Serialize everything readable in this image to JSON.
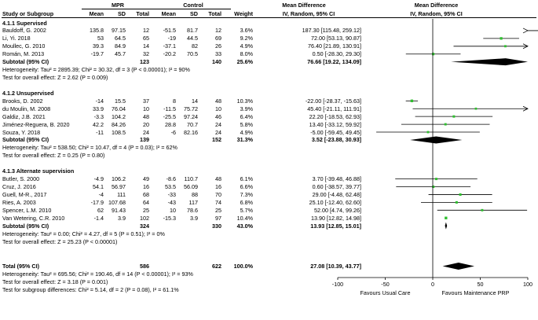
{
  "header": {
    "group1": "MPR",
    "group2": "Control",
    "diff_label": "Mean Difference",
    "diff_label2": "Mean Difference",
    "columns": [
      "Study or Subgroup",
      "Mean",
      "SD",
      "Total",
      "Mean",
      "SD",
      "Total",
      "Weight",
      "IV, Random, 95% CI",
      "IV, Random, 95% CI"
    ]
  },
  "subgroups": [
    {
      "title": "4.1.1 Supervised",
      "studies": [
        {
          "study": "Bauldoff, G. 2002",
          "m1": "135.8",
          "sd1": "97.15",
          "n1": "12",
          "m2": "-51.5",
          "sd2": "81.7",
          "n2": "12",
          "weight": "3.6%",
          "ci": "187.30 [115.48, 259.12]",
          "md": 187.3,
          "lo": 115.48,
          "hi": 259.12
        },
        {
          "study": "Li, Yi. 2018",
          "m1": "53",
          "sd1": "64.5",
          "n1": "65",
          "m2": "-19",
          "sd2": "44.5",
          "n2": "69",
          "weight": "9.2%",
          "ci": "72.00 [53.13, 90.87]",
          "md": 72.0,
          "lo": 53.13,
          "hi": 90.87
        },
        {
          "study": "Moullec, G. 2010",
          "m1": "39.3",
          "sd1": "84.9",
          "n1": "14",
          "m2": "-37.1",
          "sd2": "82",
          "n2": "26",
          "weight": "4.9%",
          "ci": "76.40 [21.89, 130.91]",
          "md": 76.4,
          "lo": 21.89,
          "hi": 130.91
        },
        {
          "study": "Román, M. 2013",
          "m1": "-19.7",
          "sd1": "45.7",
          "n1": "32",
          "m2": "-20.2",
          "sd2": "70.5",
          "n2": "33",
          "weight": "8.0%",
          "ci": "0.50 [-28.30, 29.30]",
          "md": 0.5,
          "lo": -28.3,
          "hi": 29.3
        }
      ],
      "subtotal": {
        "label": "Subtotal (95% CI)",
        "n1": "123",
        "n2": "140",
        "weight": "25.6%",
        "ci": "76.66 [19.22, 134.09]",
        "md": 76.66,
        "lo": 19.22,
        "hi": 134.09
      },
      "heterogeneity": "Heterogeneity: Tau² = 2895.39; Chi² = 30.32, df = 3 (P < 0.00001); I² = 90%",
      "overall": "Test for overall effect: Z = 2.62 (P = 0.009)"
    },
    {
      "title": "4.1.2 Unsupervised",
      "studies": [
        {
          "study": "Brooks, D. 2002",
          "m1": "-14",
          "sd1": "15.5",
          "n1": "37",
          "m2": "8",
          "sd2": "14",
          "n2": "48",
          "weight": "10.3%",
          "ci": "-22.00 [-28.37, -15.63]",
          "md": -22.0,
          "lo": -28.37,
          "hi": -15.63
        },
        {
          "study": "du Moulin, M. 2008",
          "m1": "33.9",
          "sd1": "76.04",
          "n1": "10",
          "m2": "-11.5",
          "sd2": "75.72",
          "n2": "10",
          "weight": "3.9%",
          "ci": "45.40 [-21.11, 111.91]",
          "md": 45.4,
          "lo": -21.11,
          "hi": 111.91
        },
        {
          "study": "Galdiz, J.B. 2021",
          "m1": "-3.3",
          "sd1": "104.2",
          "n1": "48",
          "m2": "-25.5",
          "sd2": "97.24",
          "n2": "46",
          "weight": "6.4%",
          "ci": "22.20 [-18.53, 62.93]",
          "md": 22.2,
          "lo": -18.53,
          "hi": 62.93
        },
        {
          "study": "Jiménez-Reguera, B. 2020",
          "m1": "42.2",
          "sd1": "84.26",
          "n1": "20",
          "m2": "28.8",
          "sd2": "70.7",
          "n2": "24",
          "weight": "5.8%",
          "ci": "13.40 [-33.12, 59.92]",
          "md": 13.4,
          "lo": -33.12,
          "hi": 59.92
        },
        {
          "study": "Souza, Y. 2018",
          "m1": "-11",
          "sd1": "108.5",
          "n1": "24",
          "m2": "-6",
          "sd2": "82.16",
          "n2": "24",
          "weight": "4.9%",
          "ci": "-5.00 [-59.45, 49.45]",
          "md": -5.0,
          "lo": -59.45,
          "hi": 49.45
        }
      ],
      "subtotal": {
        "label": "Subtotal (95% CI)",
        "n1": "139",
        "n2": "152",
        "weight": "31.3%",
        "ci": "3.52 [-23.88, 30.93]",
        "md": 3.52,
        "lo": -23.88,
        "hi": 30.93
      },
      "heterogeneity": "Heterogeneity: Tau² = 538.50; Chi² = 10.47, df = 4 (P = 0.03); I² = 62%",
      "overall": "Test for overall effect: Z = 0.25 (P = 0.80)"
    },
    {
      "title": "4.1.3 Alternate supervision",
      "studies": [
        {
          "study": "Butler, S. 2000",
          "m1": "-4.9",
          "sd1": "106.2",
          "n1": "49",
          "m2": "-8.6",
          "sd2": "110.7",
          "n2": "48",
          "weight": "6.1%",
          "ci": "3.70 [-39.48, 46.88]",
          "md": 3.7,
          "lo": -39.48,
          "hi": 46.88
        },
        {
          "study": "Cruz, J. 2016",
          "m1": "54.1",
          "sd1": "56.97",
          "n1": "16",
          "m2": "53.5",
          "sd2": "56.09",
          "n2": "16",
          "weight": "6.6%",
          "ci": "0.60 [-38.57, 39.77]",
          "md": 0.6,
          "lo": -38.57,
          "hi": 39.77
        },
        {
          "study": "Guell, M-R., 2017",
          "m1": "-4",
          "sd1": "111",
          "n1": "68",
          "m2": "-33",
          "sd2": "88",
          "n2": "70",
          "weight": "7.3%",
          "ci": "29.00 [-4.48, 62.48]",
          "md": 29.0,
          "lo": -4.48,
          "hi": 62.48
        },
        {
          "study": "Ries, A. 2003",
          "m1": "-17.9",
          "sd1": "107.68",
          "n1": "64",
          "m2": "-43",
          "sd2": "117",
          "n2": "74",
          "weight": "6.8%",
          "ci": "25.10 [-12.40, 62.60]",
          "md": 25.1,
          "lo": -12.4,
          "hi": 62.6
        },
        {
          "study": "Spencer, L.M. 2010",
          "m1": "62",
          "sd1": "91.43",
          "n1": "25",
          "m2": "10",
          "sd2": "78.6",
          "n2": "25",
          "weight": "5.7%",
          "ci": "52.00 [4.74, 99.26]",
          "md": 52.0,
          "lo": 4.74,
          "hi": 99.26
        },
        {
          "study": "Van Wetering, C.R. 2010",
          "m1": "-1.4",
          "sd1": "3.9",
          "n1": "102",
          "m2": "-15.3",
          "sd2": "3.9",
          "n2": "97",
          "weight": "10.4%",
          "ci": "13.90 [12.82, 14.98]",
          "md": 13.9,
          "lo": 12.82,
          "hi": 14.98
        }
      ],
      "subtotal": {
        "label": "Subtotal (95% CI)",
        "n1": "324",
        "n2": "330",
        "weight": "43.0%",
        "ci": "13.93 [12.85, 15.01]",
        "md": 13.93,
        "lo": 12.85,
        "hi": 15.01
      },
      "heterogeneity": "Heterogeneity: Tau² = 0.00; Chi² = 4.27, df = 5 (P = 0.51); I² = 0%",
      "overall": "Test for overall effect: Z = 25.23 (P < 0.00001)"
    }
  ],
  "total": {
    "label": "Total (95% CI)",
    "n1": "586",
    "n2": "622",
    "weight": "100.0%",
    "ci": "27.08 [10.39, 43.77]",
    "md": 27.08,
    "lo": 10.39,
    "hi": 43.77
  },
  "footer": {
    "heterogeneity": "Heterogeneity: Tau² = 695.56; Chi² = 190.46, df = 14 (P < 0.00001); I² = 93%",
    "overall": "Test for overall effect: Z = 3.18 (P = 0.001)",
    "subgroup": "Test for subgroup differences: Chi² = 5.14, df = 2 (P = 0.08), I² = 61.1%"
  },
  "chart_data": {
    "type": "forest",
    "xlim": [
      -100,
      100
    ],
    "ticks": [
      -100,
      -50,
      0,
      50,
      100
    ],
    "favours_left": "Favours Usual Care",
    "favours_right": "Favours Maintenance PRP",
    "study_color": "#2fbf2f",
    "summary_color": "#000000"
  }
}
